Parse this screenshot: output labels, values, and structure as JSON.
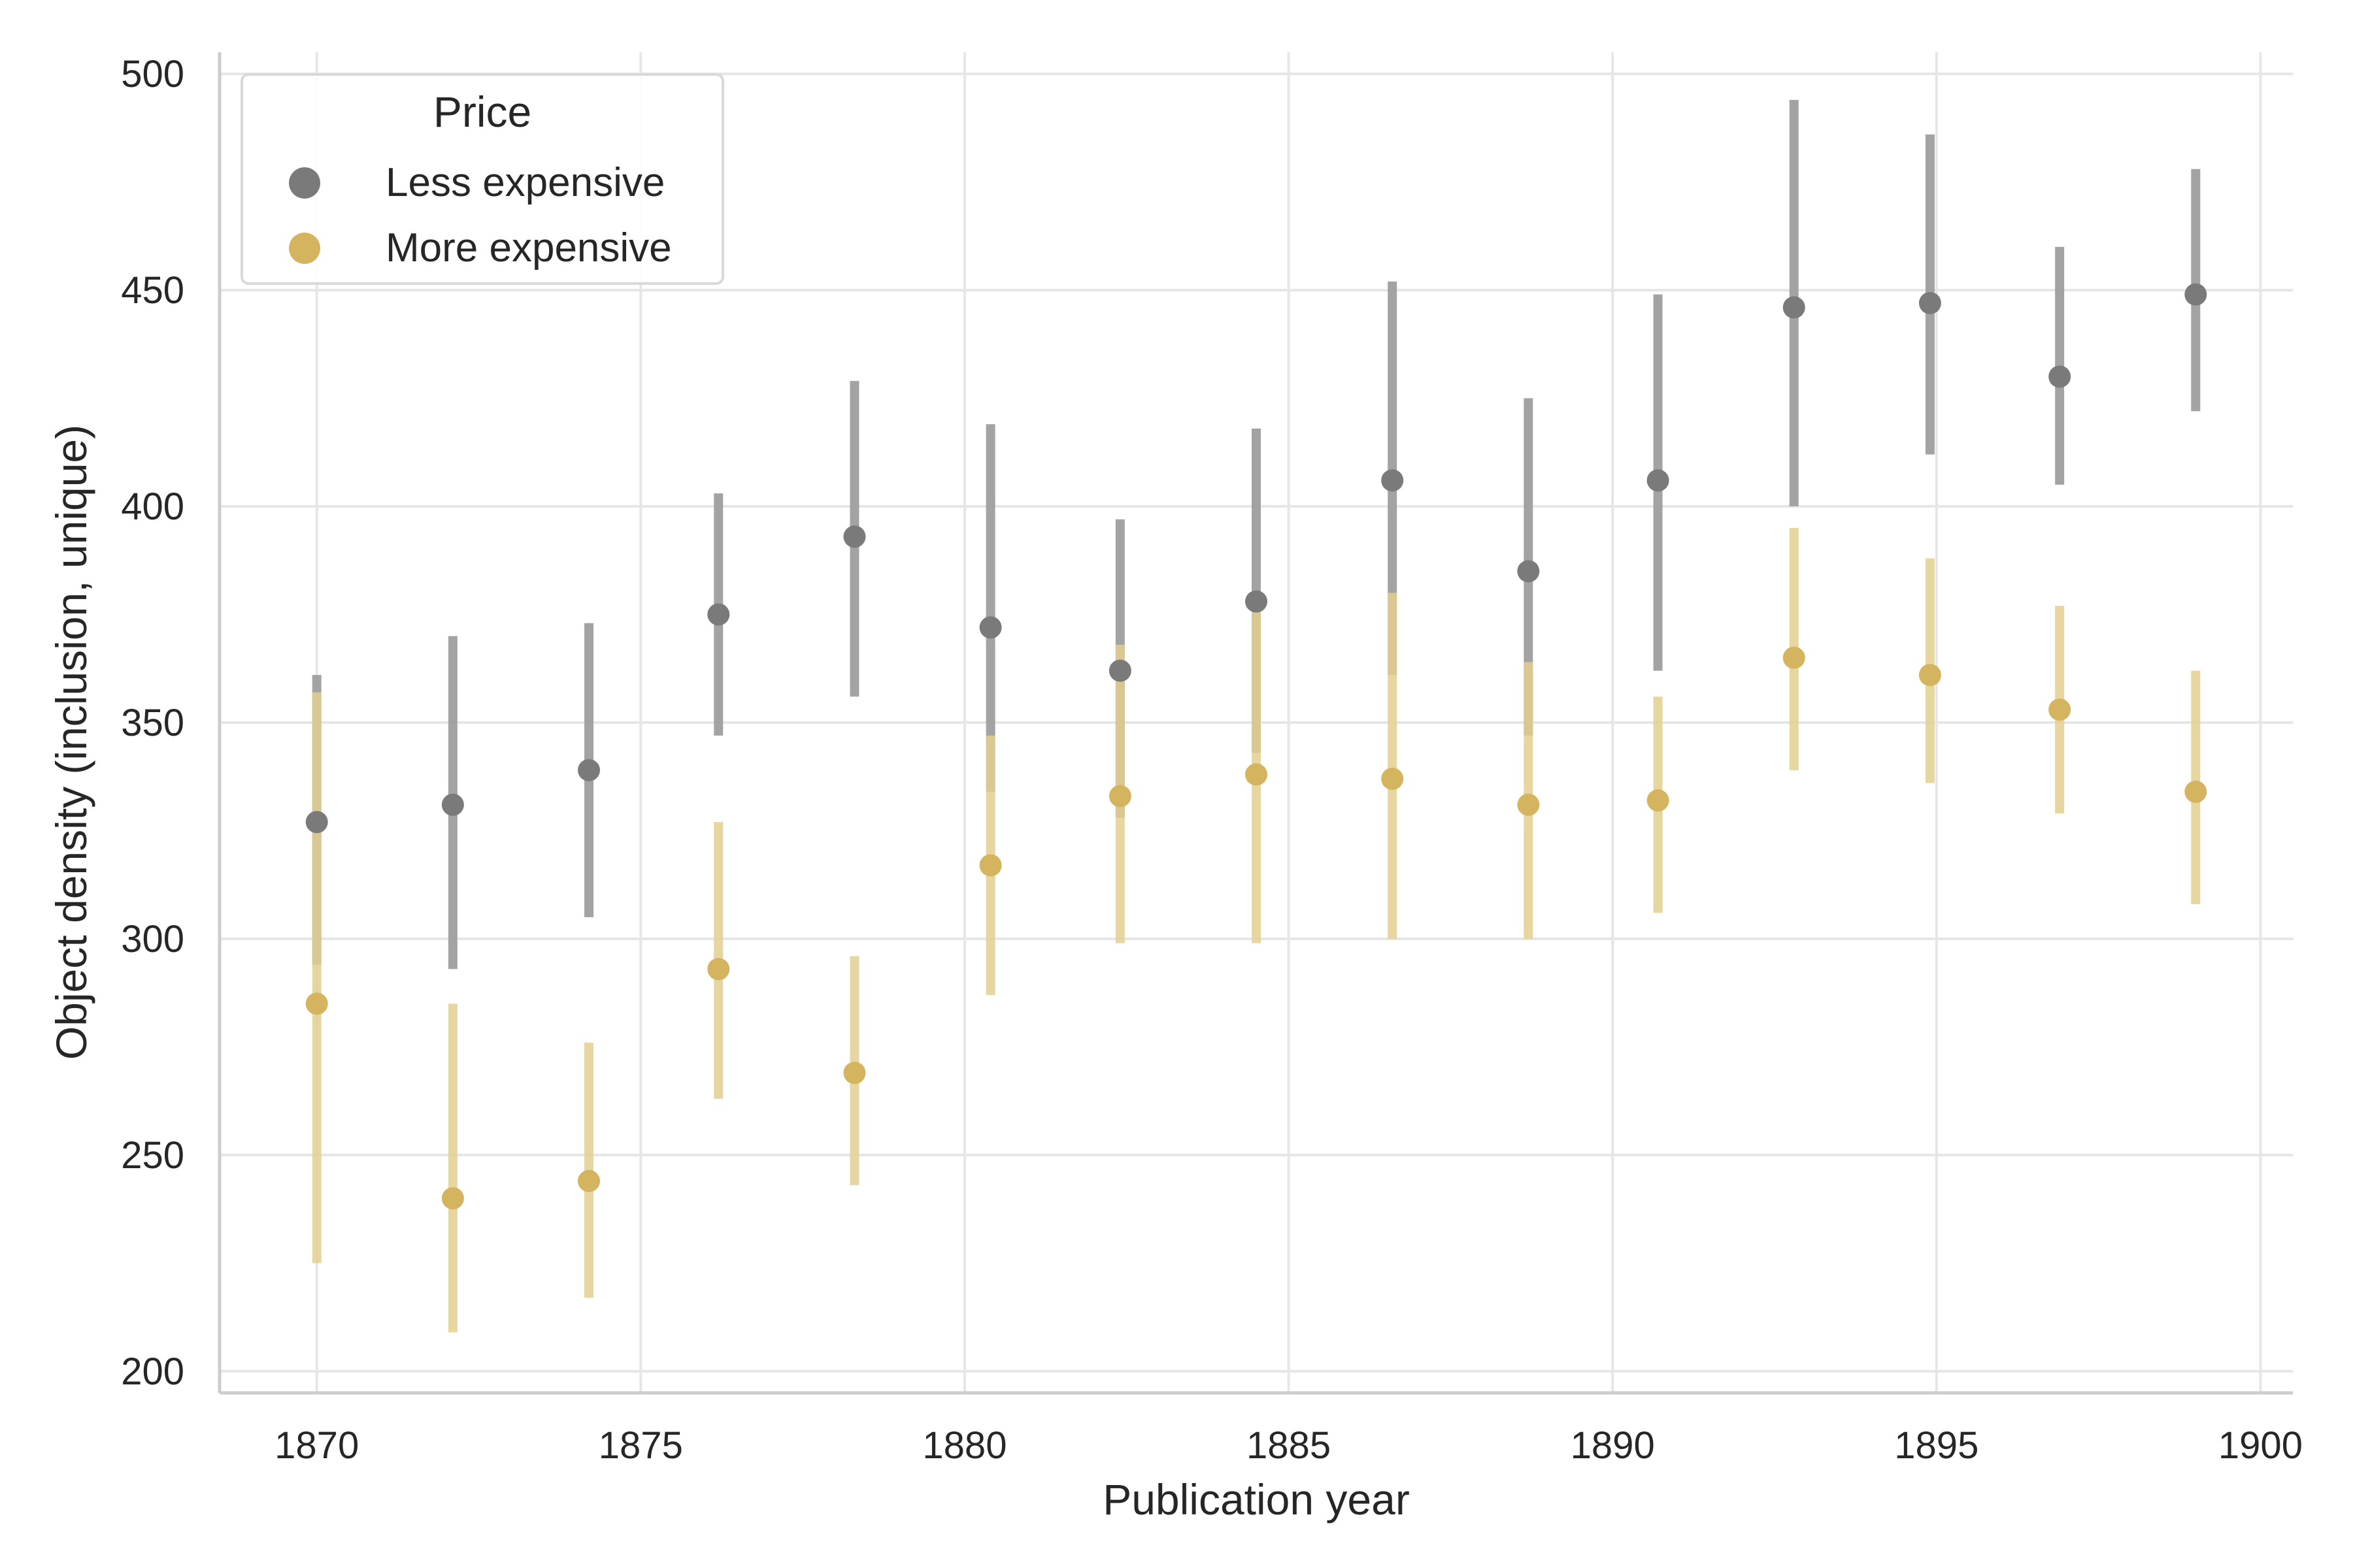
{
  "chart_data": {
    "type": "scatter",
    "xlabel": "Publication year",
    "ylabel": "Object density (inclusion, unique)",
    "xlim": [
      1868.5,
      1900.5
    ],
    "ylim": [
      195,
      505
    ],
    "xticks": [
      1870,
      1875,
      1880,
      1885,
      1890,
      1895,
      1900
    ],
    "yticks": [
      200,
      250,
      300,
      350,
      400,
      450,
      500
    ],
    "grid": true,
    "legend": {
      "title": "Price",
      "placement": "top-left"
    },
    "series": [
      {
        "name": "Less expensive",
        "color": "#7a7a7a",
        "errorbar_color": "#9e9e9e",
        "points": [
          {
            "x": 1870.0,
            "y": 327,
            "low": 294,
            "high": 361
          },
          {
            "x": 1872.1,
            "y": 331,
            "low": 293,
            "high": 370
          },
          {
            "x": 1874.2,
            "y": 339,
            "low": 305,
            "high": 373
          },
          {
            "x": 1876.2,
            "y": 375,
            "low": 347,
            "high": 403
          },
          {
            "x": 1878.3,
            "y": 393,
            "low": 356,
            "high": 429
          },
          {
            "x": 1880.4,
            "y": 372,
            "low": 334,
            "high": 419
          },
          {
            "x": 1882.4,
            "y": 362,
            "low": 328,
            "high": 397
          },
          {
            "x": 1884.5,
            "y": 378,
            "low": 343,
            "high": 418
          },
          {
            "x": 1886.6,
            "y": 406,
            "low": 361,
            "high": 452
          },
          {
            "x": 1888.7,
            "y": 385,
            "low": 347,
            "high": 425
          },
          {
            "x": 1890.7,
            "y": 406,
            "low": 362,
            "high": 449
          },
          {
            "x": 1892.8,
            "y": 446,
            "low": 400,
            "high": 494
          },
          {
            "x": 1894.9,
            "y": 447,
            "low": 412,
            "high": 486
          },
          {
            "x": 1896.9,
            "y": 430,
            "low": 405,
            "high": 460
          },
          {
            "x": 1899.0,
            "y": 449,
            "low": 422,
            "high": 478
          }
        ]
      },
      {
        "name": "More expensive",
        "color": "#d4b45e",
        "errorbar_color": "#e3cf8f",
        "points": [
          {
            "x": 1870.0,
            "y": 285,
            "low": 225,
            "high": 357
          },
          {
            "x": 1872.1,
            "y": 240,
            "low": 209,
            "high": 285
          },
          {
            "x": 1874.2,
            "y": 244,
            "low": 217,
            "high": 276
          },
          {
            "x": 1876.2,
            "y": 293,
            "low": 263,
            "high": 327
          },
          {
            "x": 1878.3,
            "y": 269,
            "low": 243,
            "high": 296
          },
          {
            "x": 1880.4,
            "y": 317,
            "low": 287,
            "high": 347
          },
          {
            "x": 1882.4,
            "y": 333,
            "low": 299,
            "high": 368
          },
          {
            "x": 1884.5,
            "y": 338,
            "low": 299,
            "high": 377
          },
          {
            "x": 1886.6,
            "y": 337,
            "low": 300,
            "high": 380
          },
          {
            "x": 1888.7,
            "y": 331,
            "low": 300,
            "high": 364
          },
          {
            "x": 1890.7,
            "y": 332,
            "low": 306,
            "high": 356
          },
          {
            "x": 1892.8,
            "y": 365,
            "low": 339,
            "high": 395
          },
          {
            "x": 1894.9,
            "y": 361,
            "low": 336,
            "high": 388
          },
          {
            "x": 1896.9,
            "y": 353,
            "low": 329,
            "high": 377
          },
          {
            "x": 1899.0,
            "y": 334,
            "low": 308,
            "high": 362
          }
        ]
      }
    ],
    "colors": {
      "grid": "#e6e6e6",
      "axis": "#cccccc"
    }
  }
}
